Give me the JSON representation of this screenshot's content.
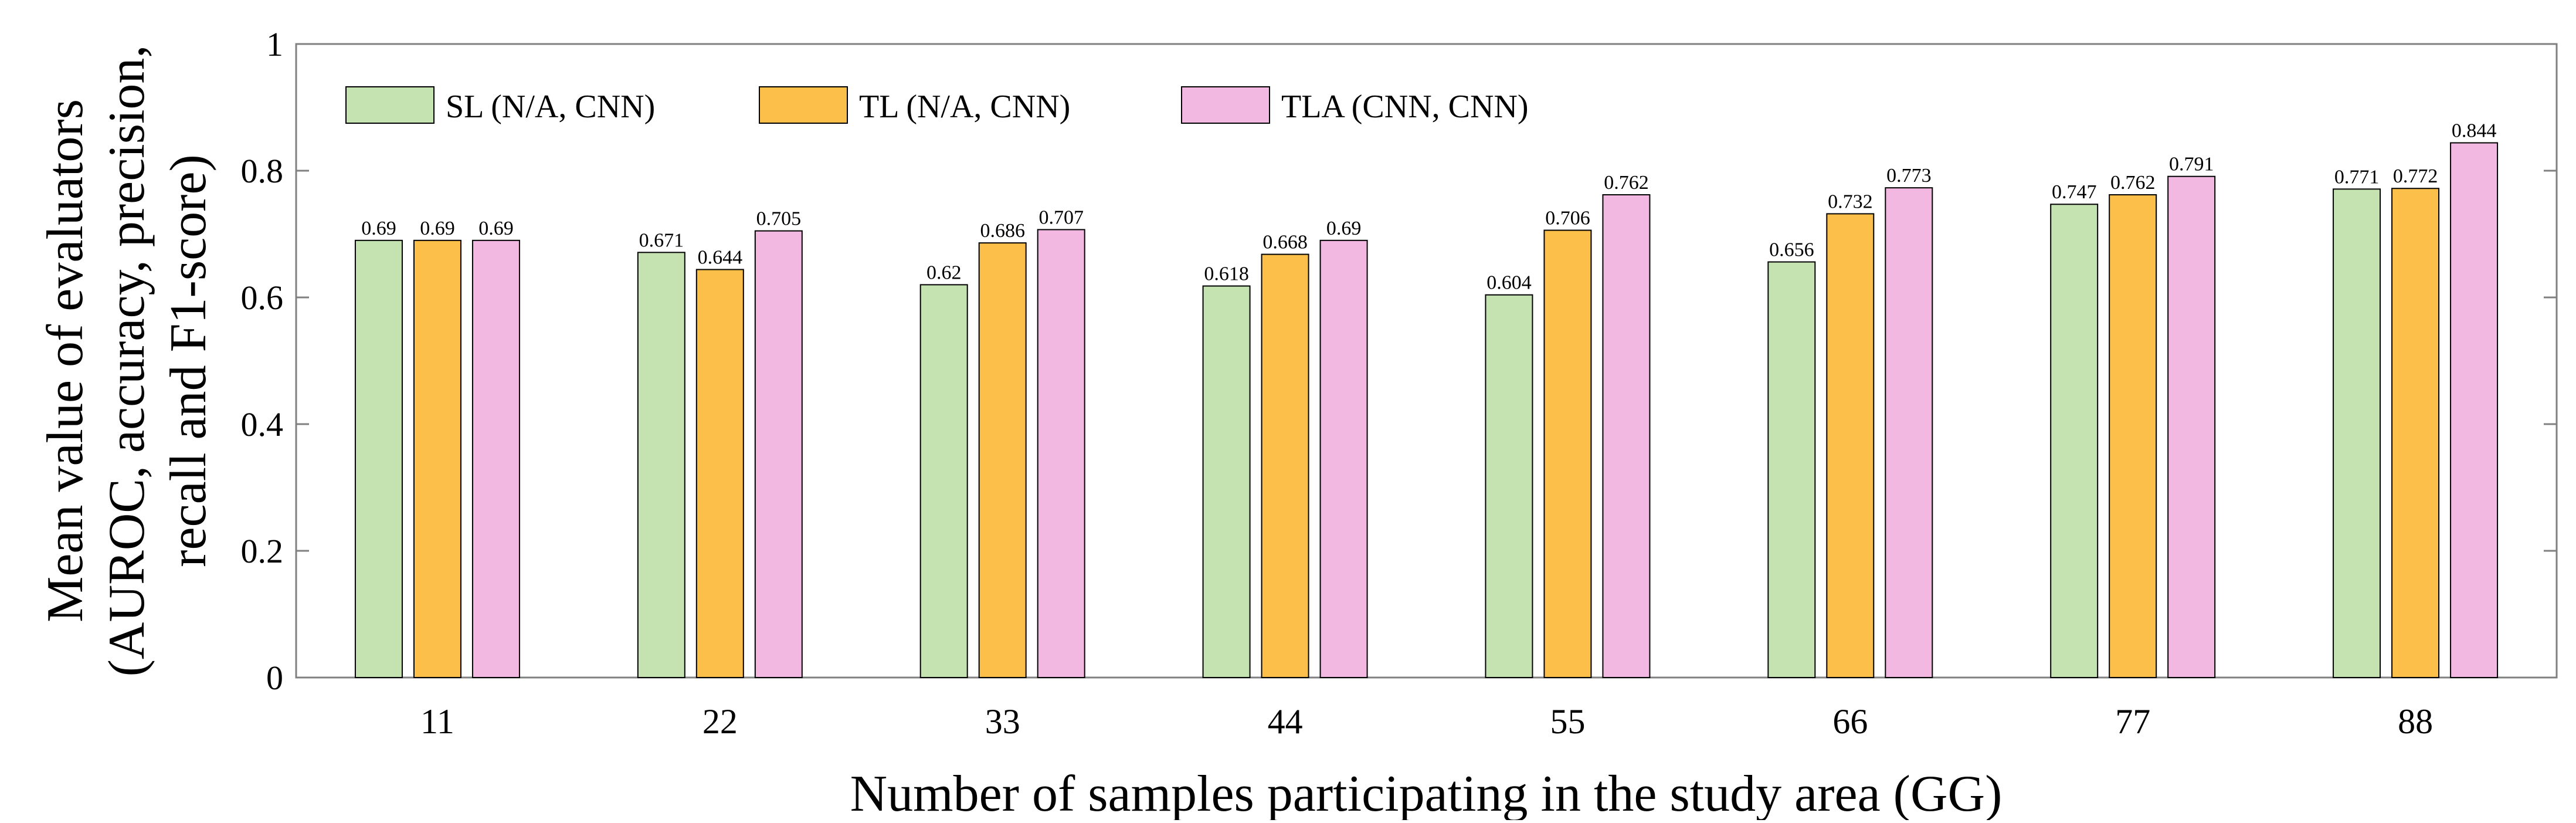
{
  "chart_data": {
    "type": "bar",
    "title": "",
    "xlabel": "Number of samples participating in the study area (GG)",
    "ylabel_lines": [
      "Mean value of evaluators",
      "(AUROC, accuracy, precision,",
      "recall and F1-score)"
    ],
    "categories": [
      "11",
      "22",
      "33",
      "44",
      "55",
      "66",
      "77",
      "88"
    ],
    "ylim": [
      0,
      1
    ],
    "yticks": [
      0,
      0.2,
      0.4,
      0.6,
      0.8,
      1
    ],
    "ytick_labels": [
      "0",
      "0.2",
      "0.4",
      "0.6",
      "0.8",
      "1"
    ],
    "legend_position": "top-left",
    "grid": false,
    "series": [
      {
        "name": "SL (N/A, CNN)",
        "color": "#c5e3b1",
        "values": [
          0.69,
          0.671,
          0.62,
          0.618,
          0.604,
          0.656,
          0.747,
          0.771
        ],
        "labels": [
          "0.69",
          "0.671",
          "0.62",
          "0.618",
          "0.604",
          "0.656",
          "0.747",
          "0.771"
        ]
      },
      {
        "name": "TL (N/A, CNN)",
        "color": "#fbbf4a",
        "values": [
          0.69,
          0.644,
          0.686,
          0.668,
          0.706,
          0.732,
          0.762,
          0.772
        ],
        "labels": [
          "0.69",
          "0.644",
          "0.686",
          "0.668",
          "0.706",
          "0.732",
          "0.762",
          "0.772"
        ]
      },
      {
        "name": "TLA (CNN, CNN)",
        "color": "#f2b8e1",
        "values": [
          0.69,
          0.705,
          0.707,
          0.69,
          0.762,
          0.773,
          0.791,
          0.844
        ],
        "labels": [
          "0.69",
          "0.705",
          "0.707",
          "0.69",
          "0.762",
          "0.773",
          "0.791",
          "0.844"
        ]
      }
    ]
  }
}
